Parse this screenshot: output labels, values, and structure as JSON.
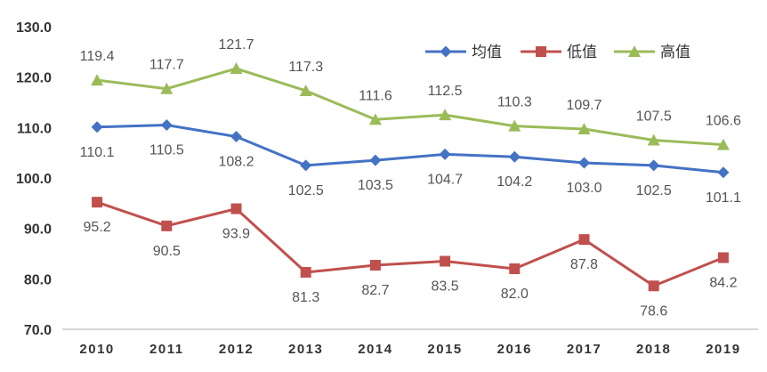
{
  "chart_data": {
    "type": "line",
    "categories": [
      "2010",
      "2011",
      "2012",
      "2013",
      "2014",
      "2015",
      "2016",
      "2017",
      "2018",
      "2019"
    ],
    "ylim": [
      70.0,
      130.0
    ],
    "yticks": [
      "70.0",
      "80.0",
      "90.0",
      "100.0",
      "110.0",
      "120.0",
      "130.0"
    ],
    "grid": false,
    "legend_position": "top-right",
    "series": [
      {
        "name": "均值",
        "color": "#4472C4",
        "marker": "diamond",
        "values": [
          110.1,
          110.5,
          108.2,
          102.5,
          103.5,
          104.7,
          104.2,
          103.0,
          102.5,
          101.1
        ],
        "labels": [
          "110.1",
          "110.5",
          "108.2",
          "102.5",
          "103.5",
          "104.7",
          "104.2",
          "103.0",
          "102.5",
          "101.1"
        ],
        "label_position": "below"
      },
      {
        "name": "低值",
        "color": "#C0504D",
        "marker": "square",
        "values": [
          95.2,
          90.5,
          93.9,
          81.3,
          82.7,
          83.5,
          82.0,
          87.8,
          78.6,
          84.2
        ],
        "labels": [
          "95.2",
          "90.5",
          "93.9",
          "81.3",
          "82.7",
          "83.5",
          "82.0",
          "87.8",
          "78.6",
          "84.2"
        ],
        "label_position": "below"
      },
      {
        "name": "高值",
        "color": "#9BBB59",
        "marker": "triangle",
        "values": [
          119.4,
          117.7,
          121.7,
          117.3,
          111.6,
          112.5,
          110.3,
          109.7,
          107.5,
          106.6
        ],
        "labels": [
          "119.4",
          "117.7",
          "121.7",
          "117.3",
          "111.6",
          "112.5",
          "110.3",
          "109.7",
          "107.5",
          "106.6"
        ],
        "label_position": "above"
      }
    ]
  }
}
